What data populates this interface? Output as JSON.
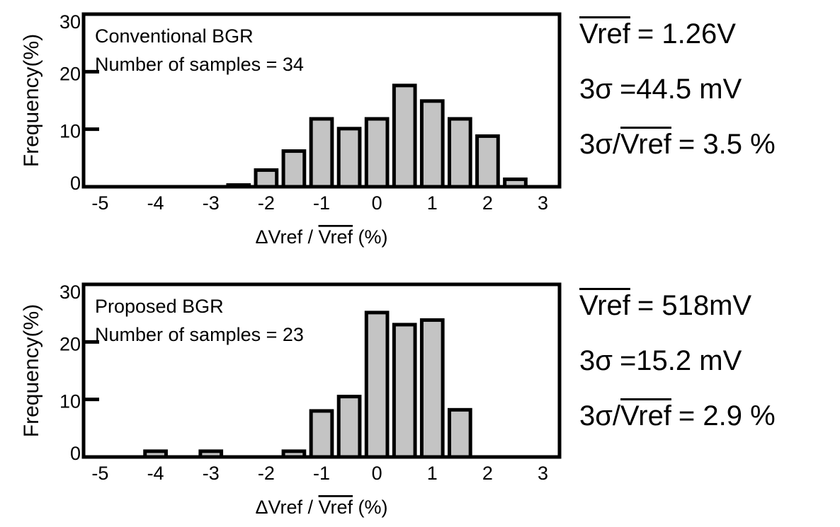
{
  "chart_data": [
    {
      "type": "bar",
      "title": "Conventional BGR",
      "subtitle": "Number of samples = 34",
      "xlabel_prefix": "Δ",
      "xlabel_num": "Vref",
      "xlabel_sep": " / ",
      "xlabel_den": "Vref",
      "xlabel_unit": " (%)",
      "ylabel": "Frequency(%)",
      "xlim": [
        -5.3,
        3.3
      ],
      "ylim": [
        0,
        30
      ],
      "x_ticks": [
        -5,
        -4,
        -3,
        -2,
        -1,
        0,
        1,
        2,
        3
      ],
      "y_ticks": [
        0,
        10,
        20,
        30
      ],
      "bar_width": 0.38,
      "bar_color": "#c4c4c4",
      "x": [
        -5,
        -4.5,
        -4,
        -3.5,
        -3,
        -2.5,
        -2,
        -1.5,
        -1,
        -0.5,
        0,
        0.5,
        1,
        1.5,
        2,
        2.5
      ],
      "values": [
        0,
        0,
        0,
        0,
        0,
        0.3,
        2.9,
        6.2,
        11.8,
        10.1,
        11.8,
        17.6,
        14.9,
        11.8,
        8.8,
        1.3
      ]
    },
    {
      "type": "bar",
      "title": "Proposed BGR",
      "subtitle": "Number of samples = 23",
      "xlabel_prefix": "Δ",
      "xlabel_num": "Vref",
      "xlabel_sep": " / ",
      "xlabel_den": "Vref",
      "xlabel_unit": " (%)",
      "ylabel": "Frequency(%)",
      "xlim": [
        -5.3,
        3.3
      ],
      "ylim": [
        0,
        30
      ],
      "x_ticks": [
        -5,
        -4,
        -3,
        -2,
        -1,
        0,
        1,
        2,
        3
      ],
      "y_ticks": [
        0,
        10,
        20,
        30
      ],
      "bar_width": 0.38,
      "bar_color": "#c4c4c4",
      "x": [
        -5,
        -4.5,
        -4,
        -3.5,
        -3,
        -2.5,
        -2,
        -1.5,
        -1,
        -0.5,
        0,
        0.5,
        1,
        1.5,
        2,
        2.5,
        3
      ],
      "values": [
        0,
        0,
        1.0,
        0,
        1.0,
        0,
        0,
        1.0,
        8.0,
        10.5,
        25.1,
        23.0,
        23.8,
        8.2,
        0,
        0,
        0
      ]
    }
  ],
  "stats": {
    "top": {
      "vref_symbol": "Vref",
      "vref_value": "= 1.26V",
      "sigma_lead": "3σ",
      "sigma_value": "=44.5 mV",
      "ratio_lead": "3σ/",
      "ratio_den": "Vref",
      "ratio_value": "= 3.5 %"
    },
    "bottom": {
      "vref_symbol": "Vref",
      "vref_value": "= 518mV",
      "sigma_lead": "3σ",
      "sigma_value": "=15.2 mV",
      "ratio_lead": "3σ/",
      "ratio_den": "Vref",
      "ratio_value": "= 2.9 %"
    }
  }
}
